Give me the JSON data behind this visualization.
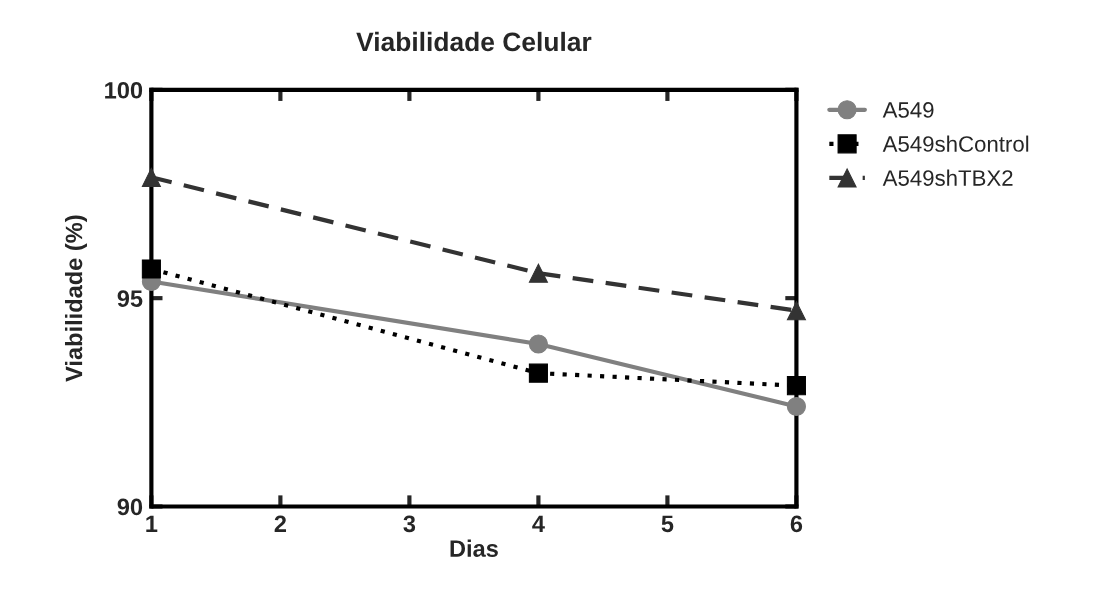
{
  "chart_data": {
    "type": "line",
    "title": "Viabilidade Celular",
    "xlabel": "Dias",
    "ylabel": "Viabilidade (%)",
    "xlim": [
      1,
      6
    ],
    "xticks": [
      1,
      2,
      3,
      4,
      5,
      6
    ],
    "ylim": [
      90,
      100
    ],
    "yticks": [
      90,
      95,
      100
    ],
    "grid": false,
    "legend": "top right",
    "series": [
      {
        "name": "A549",
        "color": "#808080",
        "x": [
          1,
          4,
          6
        ],
        "values": [
          95.4,
          93.9,
          92.4
        ],
        "marker": "circle",
        "line_style": "solid"
      },
      {
        "name": "A549shControl",
        "color": "#000000",
        "x": [
          1,
          4,
          6
        ],
        "values": [
          95.7,
          93.2,
          92.9
        ],
        "marker": "square",
        "line_style": "dotted"
      },
      {
        "name": "A549shTBX2",
        "color": "#333333",
        "x": [
          1,
          4,
          6
        ],
        "values": [
          97.9,
          95.6,
          94.7
        ],
        "marker": "triangle",
        "line_style": "dashed"
      }
    ]
  }
}
